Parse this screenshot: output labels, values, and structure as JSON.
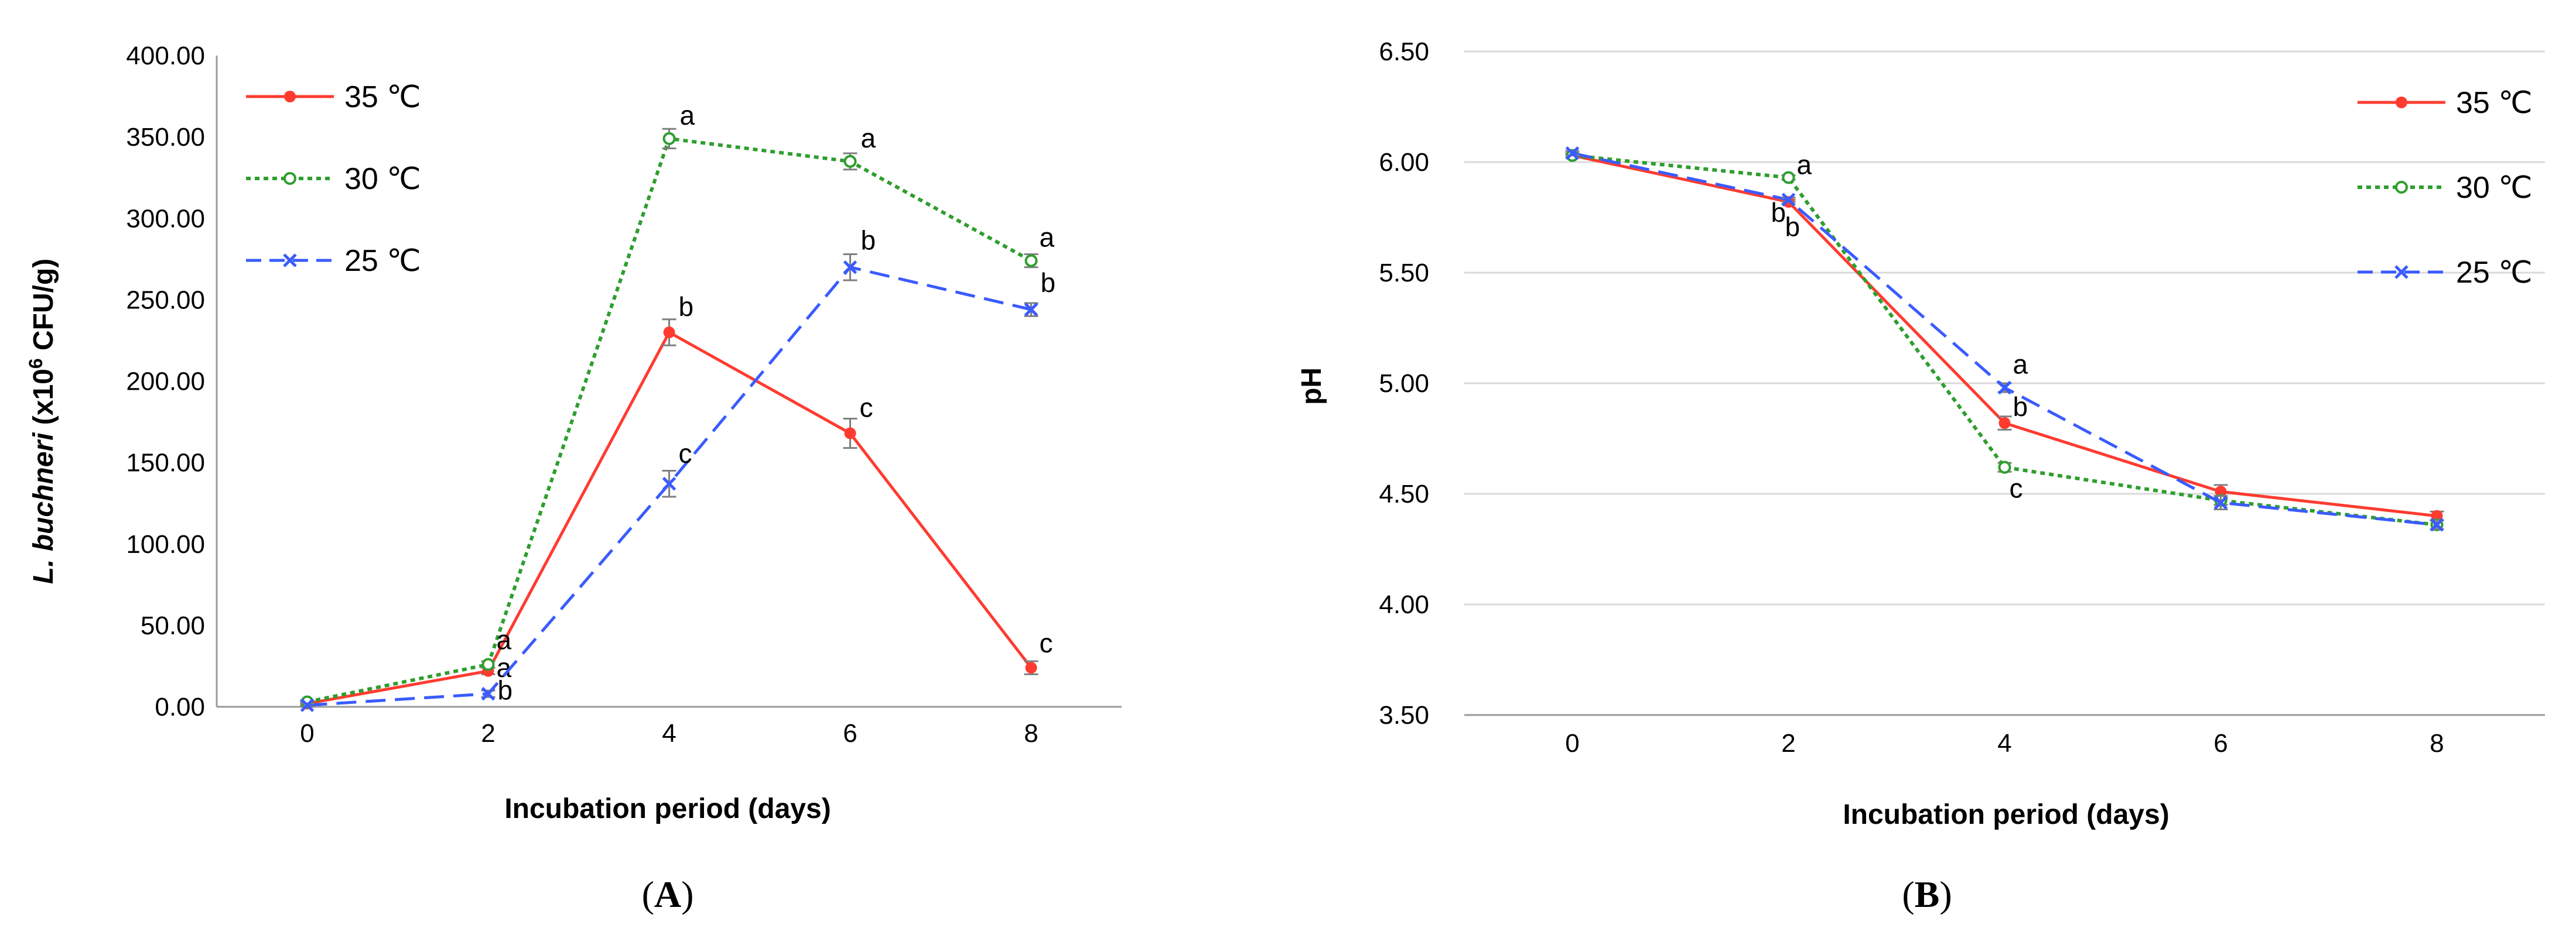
{
  "figure": {
    "panel_a_label": "A",
    "panel_b_label": "B",
    "label_open": "(",
    "label_close": ")"
  },
  "chart_data": [
    {
      "type": "line",
      "panel": "A",
      "title": "",
      "xlabel": "Incubation period (days)",
      "ylabel_italic": "L. buchneri",
      "ylabel_prefix": " (x10",
      "ylabel_sup": "6",
      "ylabel_suffix": " CFU/g)",
      "x": [
        0,
        2,
        4,
        6,
        8
      ],
      "xlim": [
        -1,
        9
      ],
      "ylim": [
        0,
        400
      ],
      "yticks": [
        0,
        50,
        100,
        150,
        200,
        250,
        300,
        350,
        400
      ],
      "ytick_decimals": 2,
      "grid": false,
      "legend_position": "top-left",
      "series": [
        {
          "name": "35 ℃",
          "color": "#FF3B30",
          "dash": "solid",
          "marker": "dot",
          "values": [
            2,
            22,
            230,
            168,
            24
          ],
          "errors": [
            1,
            2,
            8,
            9,
            4
          ],
          "letters": [
            "",
            "a",
            "b",
            "c",
            "c"
          ],
          "letter_offsets": [
            [
              0,
              0
            ],
            [
              14,
              10
            ],
            [
              16,
              -28
            ],
            [
              16,
              -28
            ],
            [
              14,
              -26
            ]
          ]
        },
        {
          "name": "30 ℃",
          "color": "#2E9E2E",
          "dash": "dotted",
          "marker": "open-circle",
          "values": [
            3,
            26,
            349,
            335,
            274
          ],
          "errors": [
            1,
            2,
            6,
            5,
            4
          ],
          "letters": [
            "",
            "a",
            "a",
            "a",
            "a"
          ],
          "letter_offsets": [
            [
              0,
              0
            ],
            [
              14,
              -26
            ],
            [
              18,
              -24
            ],
            [
              18,
              -24
            ],
            [
              14,
              -24
            ]
          ]
        },
        {
          "name": "25 ℃",
          "color": "#3A5BFF",
          "dash": "dashed",
          "marker": "x",
          "values": [
            1,
            8,
            137,
            270,
            244
          ],
          "errors": [
            1,
            2,
            8,
            8,
            4
          ],
          "letters": [
            "",
            "b",
            "c",
            "b",
            "b"
          ],
          "letter_offsets": [
            [
              0,
              0
            ],
            [
              16,
              10
            ],
            [
              16,
              -36
            ],
            [
              18,
              -30
            ],
            [
              16,
              -30
            ]
          ]
        }
      ]
    },
    {
      "type": "line",
      "panel": "B",
      "title": "",
      "xlabel": "Incubation period (days)",
      "ylabel": "pH",
      "x": [
        0,
        2,
        4,
        6,
        8
      ],
      "xlim": [
        -1,
        9
      ],
      "ylim": [
        3.5,
        6.5
      ],
      "yticks": [
        3.5,
        4.0,
        4.5,
        5.0,
        5.5,
        6.0,
        6.5
      ],
      "ytick_decimals": 2,
      "grid": true,
      "legend_position": "top-right",
      "series": [
        {
          "name": "35 ℃",
          "color": "#FF3B30",
          "dash": "solid",
          "marker": "dot",
          "values": [
            6.03,
            5.82,
            4.82,
            4.51,
            4.4
          ],
          "errors": [
            0.01,
            0.01,
            0.03,
            0.03,
            0.02
          ],
          "letters": [
            "",
            "b",
            "b",
            "",
            ""
          ],
          "letter_offsets": [
            [
              0,
              0
            ],
            [
              -30,
              34
            ],
            [
              14,
              -12
            ],
            [
              0,
              0
            ],
            [
              0,
              0
            ]
          ]
        },
        {
          "name": "30 ℃",
          "color": "#2E9E2E",
          "dash": "dotted",
          "marker": "open-circle",
          "values": [
            6.03,
            5.93,
            4.62,
            4.47,
            4.36
          ],
          "errors": [
            0.01,
            0.01,
            0.02,
            0.02,
            0.02
          ],
          "letters": [
            "",
            "a",
            "c",
            "",
            ""
          ],
          "letter_offsets": [
            [
              0,
              0
            ],
            [
              14,
              -6
            ],
            [
              8,
              52
            ],
            [
              0,
              0
            ],
            [
              0,
              0
            ]
          ]
        },
        {
          "name": "25 ℃",
          "color": "#3A5BFF",
          "dash": "dashed",
          "marker": "x",
          "values": [
            6.04,
            5.83,
            4.98,
            4.46,
            4.36
          ],
          "errors": [
            0.01,
            0.01,
            0.02,
            0.03,
            0.02
          ],
          "letters": [
            "",
            "b",
            "a",
            "",
            ""
          ],
          "letter_offsets": [
            [
              0,
              0
            ],
            [
              -6,
              62
            ],
            [
              14,
              -24
            ],
            [
              0,
              0
            ],
            [
              0,
              0
            ]
          ]
        }
      ]
    }
  ]
}
